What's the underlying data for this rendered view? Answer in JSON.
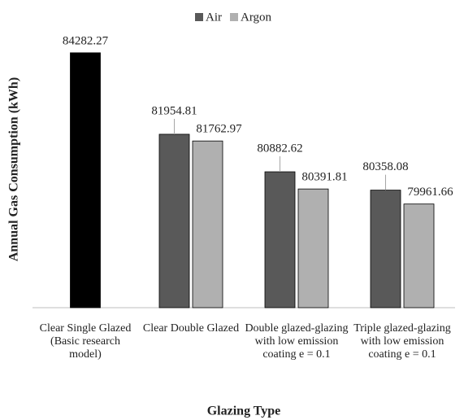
{
  "chart_data": {
    "type": "bar",
    "x_label": "Glazing Type",
    "y_label": "Annual Gas Consumption (kWh)",
    "categories": [
      "Clear Single Glazed (Basic research model)",
      "Clear Double Glazed",
      "Double glazed-glazing with low emission coating e = 0.1",
      "Triple glazed-glazing with low emission coating e = 0.1"
    ],
    "series": [
      {
        "name": "Air",
        "color": "#595959",
        "point_colors": [
          "#000000",
          "#595959",
          "#595959",
          "#595959"
        ],
        "values": [
          84282.27,
          81954.81,
          80882.62,
          80358.08
        ]
      },
      {
        "name": "Argon",
        "color": "#b0b0b0",
        "values": [
          null,
          81762.97,
          80391.81,
          79961.66
        ]
      }
    ],
    "ylim": [
      77000,
      85000
    ],
    "legend": "top",
    "grid": false
  }
}
